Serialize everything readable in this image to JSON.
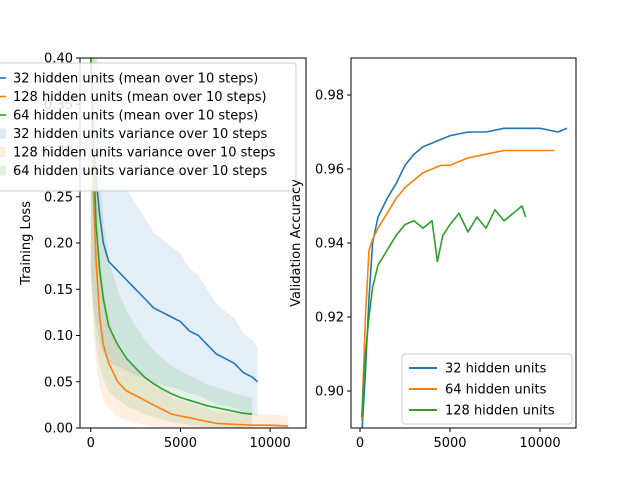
{
  "chart_data": [
    {
      "type": "line",
      "title": "",
      "xlabel": "",
      "ylabel": "Training Loss",
      "xlim": [
        -600,
        12000
      ],
      "ylim": [
        0.0,
        0.4
      ],
      "xticks": [
        0,
        5000,
        10000
      ],
      "yticks": [
        0.0,
        0.05,
        0.1,
        0.15,
        0.2,
        0.25,
        0.3,
        0.35,
        0.4
      ],
      "grid": false,
      "legend_position": "upper-left",
      "legend": [
        "32 hidden units (mean over 10 steps)",
        "128 hidden units (mean over 10 steps)",
        "64 hidden units (mean over 10 steps)",
        "32 hidden units variance over 10 steps",
        "128 hidden units variance over 10 steps",
        "64 hidden units variance over 10 steps"
      ],
      "series": [
        {
          "name": "32 hidden units (mean over 10 steps)",
          "color": "#1f77b4",
          "x": [
            0,
            150,
            300,
            500,
            700,
            1000,
            1500,
            2000,
            2500,
            3000,
            3500,
            4000,
            4500,
            5000,
            5500,
            6000,
            6500,
            7000,
            7500,
            8000,
            8500,
            9000,
            9300
          ],
          "y": [
            0.4,
            0.31,
            0.27,
            0.23,
            0.2,
            0.18,
            0.17,
            0.16,
            0.15,
            0.14,
            0.13,
            0.125,
            0.12,
            0.115,
            0.105,
            0.1,
            0.09,
            0.08,
            0.075,
            0.07,
            0.06,
            0.055,
            0.05
          ]
        },
        {
          "name": "128 hidden units (mean over 10 steps)",
          "color": "#ff7f0e",
          "x": [
            0,
            150,
            300,
            500,
            700,
            1000,
            1500,
            2000,
            2500,
            3000,
            3500,
            4000,
            4500,
            5000,
            5500,
            6000,
            6500,
            7000,
            8000,
            9000,
            10000,
            11000
          ],
          "y": [
            0.4,
            0.25,
            0.18,
            0.12,
            0.09,
            0.07,
            0.05,
            0.04,
            0.035,
            0.03,
            0.025,
            0.02,
            0.015,
            0.013,
            0.011,
            0.009,
            0.007,
            0.005,
            0.004,
            0.003,
            0.003,
            0.002
          ]
        },
        {
          "name": "64 hidden units (mean over 10 steps)",
          "color": "#2ca02c",
          "x": [
            0,
            150,
            300,
            500,
            700,
            1000,
            1500,
            2000,
            2500,
            3000,
            3500,
            4000,
            4500,
            5000,
            5500,
            6000,
            6500,
            7000,
            7500,
            8000,
            8500,
            9000
          ],
          "y": [
            0.4,
            0.3,
            0.22,
            0.17,
            0.14,
            0.11,
            0.09,
            0.075,
            0.065,
            0.055,
            0.048,
            0.042,
            0.037,
            0.033,
            0.03,
            0.027,
            0.024,
            0.022,
            0.02,
            0.018,
            0.016,
            0.015
          ]
        }
      ]
    },
    {
      "type": "line",
      "title": "",
      "xlabel": "",
      "ylabel": "Validation Accuracy",
      "xlim": [
        -500,
        12000
      ],
      "ylim": [
        0.89,
        0.99
      ],
      "xticks": [
        0,
        5000,
        10000
      ],
      "yticks": [
        0.9,
        0.92,
        0.94,
        0.96,
        0.98
      ],
      "grid": false,
      "legend_position": "lower-right",
      "legend": [
        "32 hidden units",
        "64 hidden units",
        "128 hidden units"
      ],
      "series": [
        {
          "name": "32 hidden units",
          "color": "#1f77b4",
          "x": [
            100,
            300,
            500,
            700,
            1000,
            1500,
            2000,
            2500,
            3000,
            3500,
            4000,
            4500,
            5000,
            6000,
            7000,
            8000,
            9000,
            10000,
            11000,
            11500
          ],
          "y": [
            0.888,
            0.905,
            0.925,
            0.94,
            0.947,
            0.952,
            0.956,
            0.961,
            0.964,
            0.966,
            0.967,
            0.968,
            0.969,
            0.97,
            0.97,
            0.971,
            0.971,
            0.971,
            0.97,
            0.971
          ]
        },
        {
          "name": "64 hidden units",
          "color": "#ff7f0e",
          "x": [
            100,
            300,
            500,
            700,
            1000,
            1500,
            2000,
            2500,
            3000,
            3500,
            4000,
            4500,
            5000,
            6000,
            7000,
            8000,
            9000,
            10000,
            10800
          ],
          "y": [
            0.892,
            0.92,
            0.938,
            0.941,
            0.944,
            0.948,
            0.952,
            0.955,
            0.957,
            0.959,
            0.96,
            0.961,
            0.961,
            0.963,
            0.964,
            0.965,
            0.965,
            0.965,
            0.965
          ]
        },
        {
          "name": "128 hidden units",
          "color": "#2ca02c",
          "x": [
            100,
            300,
            500,
            700,
            1000,
            1500,
            2000,
            2500,
            3000,
            3500,
            4000,
            4300,
            4600,
            5000,
            5500,
            6000,
            6500,
            7000,
            7500,
            8000,
            8500,
            9000,
            9200
          ],
          "y": [
            0.893,
            0.91,
            0.92,
            0.928,
            0.934,
            0.938,
            0.942,
            0.945,
            0.946,
            0.944,
            0.946,
            0.935,
            0.942,
            0.945,
            0.948,
            0.943,
            0.947,
            0.944,
            0.949,
            0.946,
            0.948,
            0.95,
            0.947
          ]
        }
      ]
    }
  ]
}
